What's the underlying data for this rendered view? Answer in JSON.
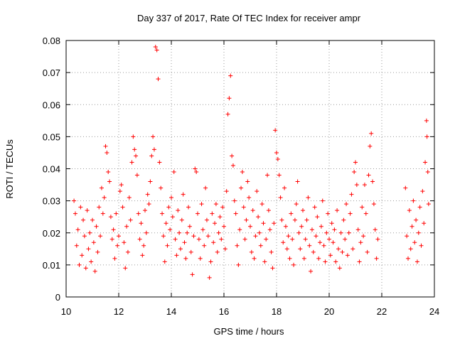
{
  "chart_data": {
    "type": "scatter",
    "title": "Day 337 of 2017, Rate Of TEC Index for receiver ampr",
    "xlabel": "GPS time / hours",
    "ylabel": "ROTI / TECUs",
    "xlim": [
      10,
      24
    ],
    "ylim": [
      0,
      0.08
    ],
    "x_ticks": [
      10,
      12,
      14,
      16,
      18,
      20,
      22,
      24
    ],
    "x_tick_labels": [
      "10",
      "12",
      "14",
      "16",
      "18",
      "20",
      "22",
      "24"
    ],
    "y_ticks": [
      0,
      0.01,
      0.02,
      0.03,
      0.04,
      0.05,
      0.06,
      0.07,
      0.08
    ],
    "y_tick_labels": [
      "0",
      "0.01",
      "0.02",
      "0.03",
      "0.04",
      "0.05",
      "0.06",
      "0.07",
      "0.08"
    ],
    "grid": true,
    "marker": "+",
    "color": "#ff0000",
    "series": [
      {
        "points": [
          [
            10.3,
            0.03
          ],
          [
            10.35,
            0.026
          ],
          [
            10.4,
            0.016
          ],
          [
            10.45,
            0.021
          ],
          [
            10.5,
            0.01
          ],
          [
            10.55,
            0.028
          ],
          [
            10.6,
            0.013
          ],
          [
            10.65,
            0.024
          ],
          [
            10.7,
            0.019
          ],
          [
            10.75,
            0.009
          ],
          [
            10.8,
            0.027
          ],
          [
            10.85,
            0.015
          ],
          [
            10.9,
            0.02
          ],
          [
            10.95,
            0.011
          ],
          [
            11.0,
            0.024
          ],
          [
            11.05,
            0.017
          ],
          [
            11.1,
            0.008
          ],
          [
            11.15,
            0.022
          ],
          [
            11.2,
            0.014
          ],
          [
            11.25,
            0.028
          ],
          [
            11.3,
            0.019
          ],
          [
            11.35,
            0.034
          ],
          [
            11.4,
            0.026
          ],
          [
            11.45,
            0.031
          ],
          [
            11.5,
            0.047
          ],
          [
            11.55,
            0.045
          ],
          [
            11.6,
            0.039
          ],
          [
            11.65,
            0.036
          ],
          [
            11.7,
            0.025
          ],
          [
            11.75,
            0.018
          ],
          [
            11.8,
            0.021
          ],
          [
            11.85,
            0.012
          ],
          [
            11.9,
            0.026
          ],
          [
            11.95,
            0.016
          ],
          [
            12.0,
            0.019
          ],
          [
            12.05,
            0.033
          ],
          [
            12.1,
            0.035
          ],
          [
            12.15,
            0.028
          ],
          [
            12.2,
            0.017
          ],
          [
            12.25,
            0.009
          ],
          [
            12.3,
            0.022
          ],
          [
            12.35,
            0.014
          ],
          [
            12.4,
            0.031
          ],
          [
            12.45,
            0.024
          ],
          [
            12.5,
            0.042
          ],
          [
            12.55,
            0.05
          ],
          [
            12.6,
            0.046
          ],
          [
            12.65,
            0.044
          ],
          [
            12.7,
            0.038
          ],
          [
            12.75,
            0.026
          ],
          [
            12.8,
            0.018
          ],
          [
            12.85,
            0.023
          ],
          [
            12.9,
            0.013
          ],
          [
            12.95,
            0.016
          ],
          [
            13.0,
            0.027
          ],
          [
            13.05,
            0.02
          ],
          [
            13.1,
            0.032
          ],
          [
            13.15,
            0.029
          ],
          [
            13.2,
            0.036
          ],
          [
            13.25,
            0.044
          ],
          [
            13.3,
            0.05
          ],
          [
            13.35,
            0.046
          ],
          [
            13.4,
            0.078
          ],
          [
            13.45,
            0.077
          ],
          [
            13.5,
            0.068
          ],
          [
            13.55,
            0.042
          ],
          [
            13.6,
            0.034
          ],
          [
            13.65,
            0.026
          ],
          [
            13.7,
            0.019
          ],
          [
            13.75,
            0.011
          ],
          [
            13.8,
            0.023
          ],
          [
            13.85,
            0.016
          ],
          [
            13.9,
            0.028
          ],
          [
            13.95,
            0.021
          ],
          [
            14.0,
            0.031
          ],
          [
            14.05,
            0.025
          ],
          [
            14.1,
            0.039
          ],
          [
            14.15,
            0.018
          ],
          [
            14.2,
            0.013
          ],
          [
            14.25,
            0.027
          ],
          [
            14.3,
            0.02
          ],
          [
            14.35,
            0.015
          ],
          [
            14.4,
            0.024
          ],
          [
            14.45,
            0.032
          ],
          [
            14.5,
            0.017
          ],
          [
            14.55,
            0.012
          ],
          [
            14.6,
            0.02
          ],
          [
            14.65,
            0.028
          ],
          [
            14.7,
            0.022
          ],
          [
            14.75,
            0.014
          ],
          [
            14.8,
            0.007
          ],
          [
            14.85,
            0.019
          ],
          [
            14.9,
            0.04
          ],
          [
            14.95,
            0.039
          ],
          [
            15.0,
            0.026
          ],
          [
            15.05,
            0.018
          ],
          [
            15.1,
            0.012
          ],
          [
            15.15,
            0.029
          ],
          [
            15.2,
            0.021
          ],
          [
            15.25,
            0.016
          ],
          [
            15.3,
            0.034
          ],
          [
            15.35,
            0.024
          ],
          [
            15.4,
            0.019
          ],
          [
            15.45,
            0.006
          ],
          [
            15.5,
            0.011
          ],
          [
            15.55,
            0.026
          ],
          [
            15.6,
            0.017
          ],
          [
            15.65,
            0.023
          ],
          [
            15.7,
            0.029
          ],
          [
            15.75,
            0.014
          ],
          [
            15.8,
            0.02
          ],
          [
            15.85,
            0.025
          ],
          [
            15.9,
            0.018
          ],
          [
            15.95,
            0.028
          ],
          [
            16.0,
            0.022
          ],
          [
            16.05,
            0.015
          ],
          [
            16.1,
            0.033
          ],
          [
            16.15,
            0.057
          ],
          [
            16.2,
            0.062
          ],
          [
            16.25,
            0.069
          ],
          [
            16.3,
            0.044
          ],
          [
            16.35,
            0.041
          ],
          [
            16.4,
            0.03
          ],
          [
            16.45,
            0.026
          ],
          [
            16.5,
            0.016
          ],
          [
            16.55,
            0.01
          ],
          [
            16.6,
            0.021
          ],
          [
            16.65,
            0.034
          ],
          [
            16.7,
            0.039
          ],
          [
            16.75,
            0.028
          ],
          [
            16.8,
            0.018
          ],
          [
            16.85,
            0.024
          ],
          [
            16.9,
            0.036
          ],
          [
            16.95,
            0.031
          ],
          [
            17.0,
            0.022
          ],
          [
            17.05,
            0.014
          ],
          [
            17.1,
            0.027
          ],
          [
            17.15,
            0.012
          ],
          [
            17.2,
            0.019
          ],
          [
            17.25,
            0.033
          ],
          [
            17.3,
            0.025
          ],
          [
            17.35,
            0.02
          ],
          [
            17.4,
            0.016
          ],
          [
            17.45,
            0.029
          ],
          [
            17.5,
            0.023
          ],
          [
            17.55,
            0.011
          ],
          [
            17.6,
            0.018
          ],
          [
            17.65,
            0.038
          ],
          [
            17.7,
            0.027
          ],
          [
            17.75,
            0.021
          ],
          [
            17.8,
            0.014
          ],
          [
            17.85,
            0.009
          ],
          [
            17.9,
            0.023
          ],
          [
            17.95,
            0.052
          ],
          [
            18.0,
            0.045
          ],
          [
            18.05,
            0.043
          ],
          [
            18.1,
            0.038
          ],
          [
            18.15,
            0.031
          ],
          [
            18.2,
            0.024
          ],
          [
            18.25,
            0.017
          ],
          [
            18.3,
            0.034
          ],
          [
            18.35,
            0.022
          ],
          [
            18.4,
            0.015
          ],
          [
            18.45,
            0.019
          ],
          [
            18.5,
            0.012
          ],
          [
            18.55,
            0.026
          ],
          [
            18.6,
            0.018
          ],
          [
            18.65,
            0.01
          ],
          [
            18.7,
            0.024
          ],
          [
            18.75,
            0.029
          ],
          [
            18.8,
            0.036
          ],
          [
            18.85,
            0.02
          ],
          [
            18.9,
            0.015
          ],
          [
            18.95,
            0.022
          ],
          [
            19.0,
            0.027
          ],
          [
            19.05,
            0.012
          ],
          [
            19.1,
            0.018
          ],
          [
            19.15,
            0.024
          ],
          [
            19.2,
            0.031
          ],
          [
            19.25,
            0.016
          ],
          [
            19.3,
            0.008
          ],
          [
            19.35,
            0.021
          ],
          [
            19.4,
            0.014
          ],
          [
            19.45,
            0.028
          ],
          [
            19.5,
            0.019
          ],
          [
            19.55,
            0.025
          ],
          [
            19.6,
            0.012
          ],
          [
            19.65,
            0.017
          ],
          [
            19.7,
            0.022
          ],
          [
            19.75,
            0.03
          ],
          [
            19.8,
            0.016
          ],
          [
            19.85,
            0.011
          ],
          [
            19.9,
            0.02
          ],
          [
            19.95,
            0.026
          ],
          [
            20.0,
            0.018
          ],
          [
            20.05,
            0.013
          ],
          [
            20.1,
            0.023
          ],
          [
            20.15,
            0.017
          ],
          [
            20.2,
            0.021
          ],
          [
            20.25,
            0.011
          ],
          [
            20.3,
            0.027
          ],
          [
            20.35,
            0.015
          ],
          [
            20.4,
            0.009
          ],
          [
            20.45,
            0.02
          ],
          [
            20.5,
            0.014
          ],
          [
            20.55,
            0.024
          ],
          [
            20.6,
            0.018
          ],
          [
            20.65,
            0.029
          ],
          [
            20.7,
            0.013
          ],
          [
            20.75,
            0.02
          ],
          [
            20.8,
            0.026
          ],
          [
            20.85,
            0.032
          ],
          [
            20.9,
            0.015
          ],
          [
            20.95,
            0.039
          ],
          [
            21.0,
            0.042
          ],
          [
            21.05,
            0.035
          ],
          [
            21.1,
            0.021
          ],
          [
            21.15,
            0.011
          ],
          [
            21.2,
            0.017
          ],
          [
            21.25,
            0.028
          ],
          [
            21.3,
            0.019
          ],
          [
            21.35,
            0.035
          ],
          [
            21.4,
            0.026
          ],
          [
            21.45,
            0.014
          ],
          [
            21.5,
            0.038
          ],
          [
            21.55,
            0.047
          ],
          [
            21.6,
            0.051
          ],
          [
            21.65,
            0.036
          ],
          [
            21.7,
            0.029
          ],
          [
            21.75,
            0.021
          ],
          [
            21.8,
            0.012
          ],
          [
            21.85,
            0.018
          ],
          [
            22.9,
            0.034
          ],
          [
            22.95,
            0.019
          ],
          [
            23.0,
            0.012
          ],
          [
            23.05,
            0.027
          ],
          [
            23.1,
            0.015
          ],
          [
            23.15,
            0.022
          ],
          [
            23.2,
            0.03
          ],
          [
            23.25,
            0.017
          ],
          [
            23.3,
            0.024
          ],
          [
            23.35,
            0.011
          ],
          [
            23.4,
            0.02
          ],
          [
            23.45,
            0.028
          ],
          [
            23.5,
            0.016
          ],
          [
            23.55,
            0.033
          ],
          [
            23.6,
            0.023
          ],
          [
            23.65,
            0.042
          ],
          [
            23.7,
            0.055
          ],
          [
            23.72,
            0.05
          ],
          [
            23.75,
            0.039
          ],
          [
            23.78,
            0.029
          ]
        ]
      }
    ]
  }
}
